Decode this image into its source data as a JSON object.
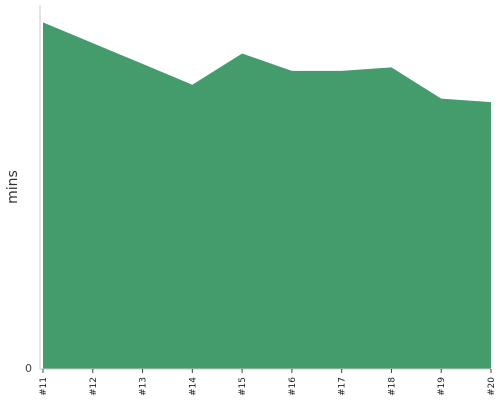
{
  "chart_data": {
    "type": "area",
    "title": "",
    "xlabel": "",
    "ylabel": "mins",
    "categories": [
      "#11",
      "#12",
      "#13",
      "#14",
      "#15",
      "#16",
      "#17",
      "#18",
      "#19",
      "#20"
    ],
    "series": [
      {
        "color": "#449c6c",
        "values": [
          100,
          94,
          88,
          82,
          91,
          86,
          86,
          87,
          78,
          77
        ]
      }
    ],
    "ylim": [
      0,
      105
    ],
    "y_ticks": [
      "0"
    ],
    "grid": false,
    "legend": "none"
  }
}
